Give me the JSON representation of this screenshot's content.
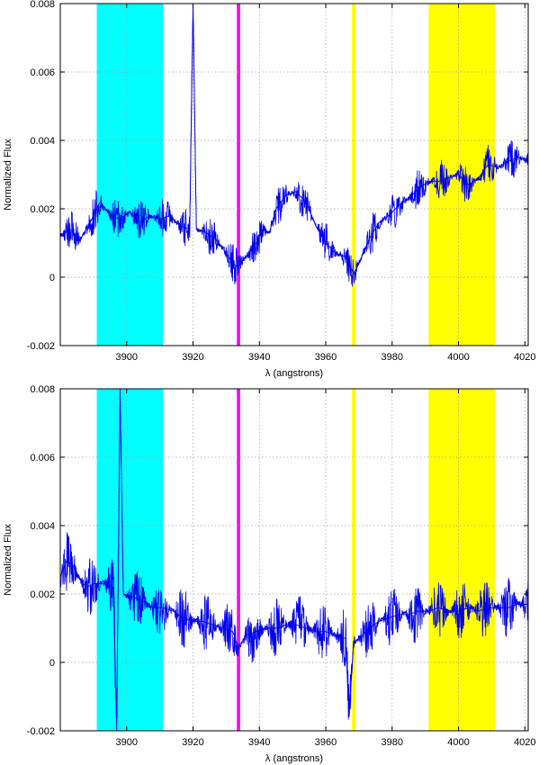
{
  "chart_data": [
    {
      "type": "line",
      "title": "",
      "xlabel": "λ (angstrons)",
      "ylabel": "Normalized Flux",
      "xlim": [
        3880,
        4021
      ],
      "ylim": [
        -0.002,
        0.008
      ],
      "xticks": [
        3900,
        3920,
        3940,
        3960,
        3980,
        4000,
        4020
      ],
      "yticks": [
        -0.002,
        0,
        0.002,
        0.004,
        0.006,
        0.008
      ],
      "ytick_labels": [
        "-0.002",
        "0",
        "0.002",
        "0.004",
        "0.006",
        "0.008"
      ],
      "grid": true,
      "series_color": "#0000ee",
      "bands": [
        {
          "x0": 3891,
          "x1": 3911,
          "color": "#00ffff"
        },
        {
          "x0": 3933.2,
          "x1": 3934.2,
          "color": "#ff00ff"
        },
        {
          "x0": 3967.9,
          "x1": 3968.9,
          "color": "#ffff00"
        },
        {
          "x0": 3991,
          "x1": 4011,
          "color": "#ffff00"
        }
      ],
      "series": [
        {
          "x": [
            3880,
            3883,
            3886,
            3889,
            3892,
            3895,
            3898,
            3901,
            3904,
            3907,
            3910,
            3913,
            3916,
            3919,
            3920,
            3921,
            3924,
            3927,
            3930,
            3932,
            3933.7,
            3935,
            3937,
            3939,
            3941,
            3943,
            3945,
            3948,
            3951,
            3954,
            3957,
            3960,
            3963,
            3966,
            3968.4,
            3970,
            3973,
            3976,
            3979,
            3982,
            3985,
            3988,
            3991,
            3994,
            3997,
            4000,
            4003,
            4006,
            4009,
            4012,
            4015,
            4018,
            4021
          ],
          "y": [
            0.0012,
            0.0014,
            0.0011,
            0.0016,
            0.0022,
            0.0018,
            0.0017,
            0.0019,
            0.0016,
            0.0018,
            0.0017,
            0.0018,
            0.0015,
            0.0014,
            0.008,
            0.0014,
            0.0013,
            0.0011,
            0.0007,
            0.0004,
            0.0003,
            0.0005,
            0.0007,
            0.001,
            0.0014,
            0.0013,
            0.002,
            0.0024,
            0.0025,
            0.0022,
            0.0015,
            0.001,
            0.0007,
            0.0006,
            0.0001,
            0.0004,
            0.0011,
            0.0016,
            0.0018,
            0.0021,
            0.0023,
            0.0026,
            0.0028,
            0.0028,
            0.0029,
            0.003,
            0.0027,
            0.0029,
            0.0033,
            0.0032,
            0.0034,
            0.0035,
            0.0034
          ],
          "noise": 0.0006
        }
      ]
    },
    {
      "type": "line",
      "title": "",
      "xlabel": "λ (angstrons)",
      "ylabel": "Normalized Flux",
      "xlim": [
        3880,
        4021
      ],
      "ylim": [
        -0.002,
        0.008
      ],
      "xticks": [
        3900,
        3920,
        3940,
        3960,
        3980,
        4000,
        4020
      ],
      "yticks": [
        -0.002,
        0,
        0.002,
        0.004,
        0.006,
        0.008
      ],
      "ytick_labels": [
        "-0.002",
        "0",
        "0.002",
        "0.004",
        "0.006",
        "0.008"
      ],
      "grid": true,
      "series_color": "#0000ee",
      "bands": [
        {
          "x0": 3891,
          "x1": 3911,
          "color": "#00ffff"
        },
        {
          "x0": 3933.2,
          "x1": 3934.2,
          "color": "#ff00ff"
        },
        {
          "x0": 3967.9,
          "x1": 3968.9,
          "color": "#ffff00"
        },
        {
          "x0": 3991,
          "x1": 4011,
          "color": "#ffff00"
        }
      ],
      "series": [
        {
          "x": [
            3880,
            3882,
            3884,
            3886,
            3888,
            3890,
            3893,
            3896,
            3897,
            3898,
            3899,
            3902,
            3905,
            3908,
            3911,
            3914,
            3917,
            3920,
            3923,
            3926,
            3929,
            3932,
            3933.7,
            3936,
            3939,
            3942,
            3945,
            3948,
            3951,
            3954,
            3957,
            3960,
            3963,
            3966,
            3967,
            3968.4,
            3970,
            3973,
            3976,
            3979,
            3982,
            3985,
            3988,
            3991,
            3994,
            3997,
            4000,
            4003,
            4006,
            4009,
            4012,
            4015,
            4018,
            4021
          ],
          "y": [
            0.0025,
            0.003,
            0.0028,
            0.0024,
            0.0022,
            0.0023,
            0.0023,
            0.0022,
            -0.002,
            0.008,
            0.002,
            0.0019,
            0.0018,
            0.0016,
            0.0016,
            0.0015,
            0.0013,
            0.0012,
            0.0012,
            0.0011,
            0.001,
            0.0009,
            0.0004,
            0.0008,
            0.0009,
            0.001,
            0.001,
            0.0011,
            0.0011,
            0.001,
            0.0009,
            0.0009,
            0.0008,
            0.0007,
            -0.0016,
            0.0006,
            0.0007,
            0.001,
            0.0012,
            0.0013,
            0.0014,
            0.0014,
            0.0015,
            0.0015,
            0.0016,
            0.0015,
            0.0015,
            0.0016,
            0.0015,
            0.0016,
            0.0016,
            0.0016,
            0.0017,
            0.0017
          ],
          "noise": 0.0009
        }
      ]
    }
  ]
}
